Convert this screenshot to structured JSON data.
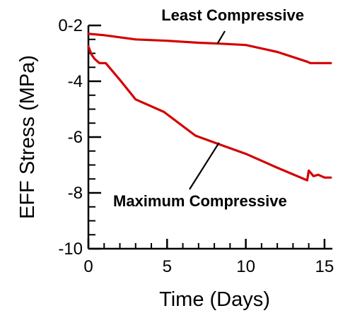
{
  "chart_data": {
    "type": "line",
    "xlabel": "Time (Days)",
    "ylabel": "EFF Stress (MPa)",
    "xlim": [
      0,
      15.5
    ],
    "ylim": [
      -10,
      -2
    ],
    "x_ticks": [
      0,
      5,
      10,
      15
    ],
    "x_tick_labels": [
      "0",
      "5",
      "10",
      "15"
    ],
    "y_ticks": [
      -2,
      -4,
      -6,
      -8,
      -10
    ],
    "y_tick_labels": [
      "-2",
      "-4",
      "-6",
      "-8",
      "-10"
    ],
    "y_top_label": "0-2",
    "x_minor_step": 1,
    "y_minor_step": 0.5,
    "grid": false,
    "series": [
      {
        "name": "Least Compressive",
        "color": "#d40000",
        "x": [
          0,
          1,
          3,
          5,
          7,
          8.3,
          10,
          12,
          13.9,
          14.1,
          15.4
        ],
        "y": [
          -2.3,
          -2.35,
          -2.5,
          -2.55,
          -2.62,
          -2.65,
          -2.7,
          -2.95,
          -3.3,
          -3.35,
          -3.35
        ]
      },
      {
        "name": "Maximum Compressive",
        "color": "#d40000",
        "x": [
          0,
          0.2,
          0.4,
          0.7,
          1.1,
          2,
          3,
          4.8,
          6.8,
          8.5,
          10,
          12,
          13.9,
          14,
          14.3,
          14.6,
          15,
          15.4
        ],
        "y": [
          -2.75,
          -3.05,
          -3.2,
          -3.35,
          -3.35,
          -3.95,
          -4.65,
          -5.1,
          -5.95,
          -6.3,
          -6.6,
          -7.1,
          -7.55,
          -7.2,
          -7.4,
          -7.35,
          -7.45,
          -7.45
        ]
      }
    ],
    "annotations": [
      {
        "text": "Least Compressive",
        "series": 0,
        "points_to": [
          8.2,
          -2.65
        ],
        "text_anchor_data": [
          10.2,
          -1.75
        ]
      },
      {
        "text": "Maximum Compressive",
        "series": 1,
        "points_to": [
          8.3,
          -6.2
        ],
        "text_anchor_data": [
          6.2,
          -8.05
        ]
      }
    ]
  }
}
